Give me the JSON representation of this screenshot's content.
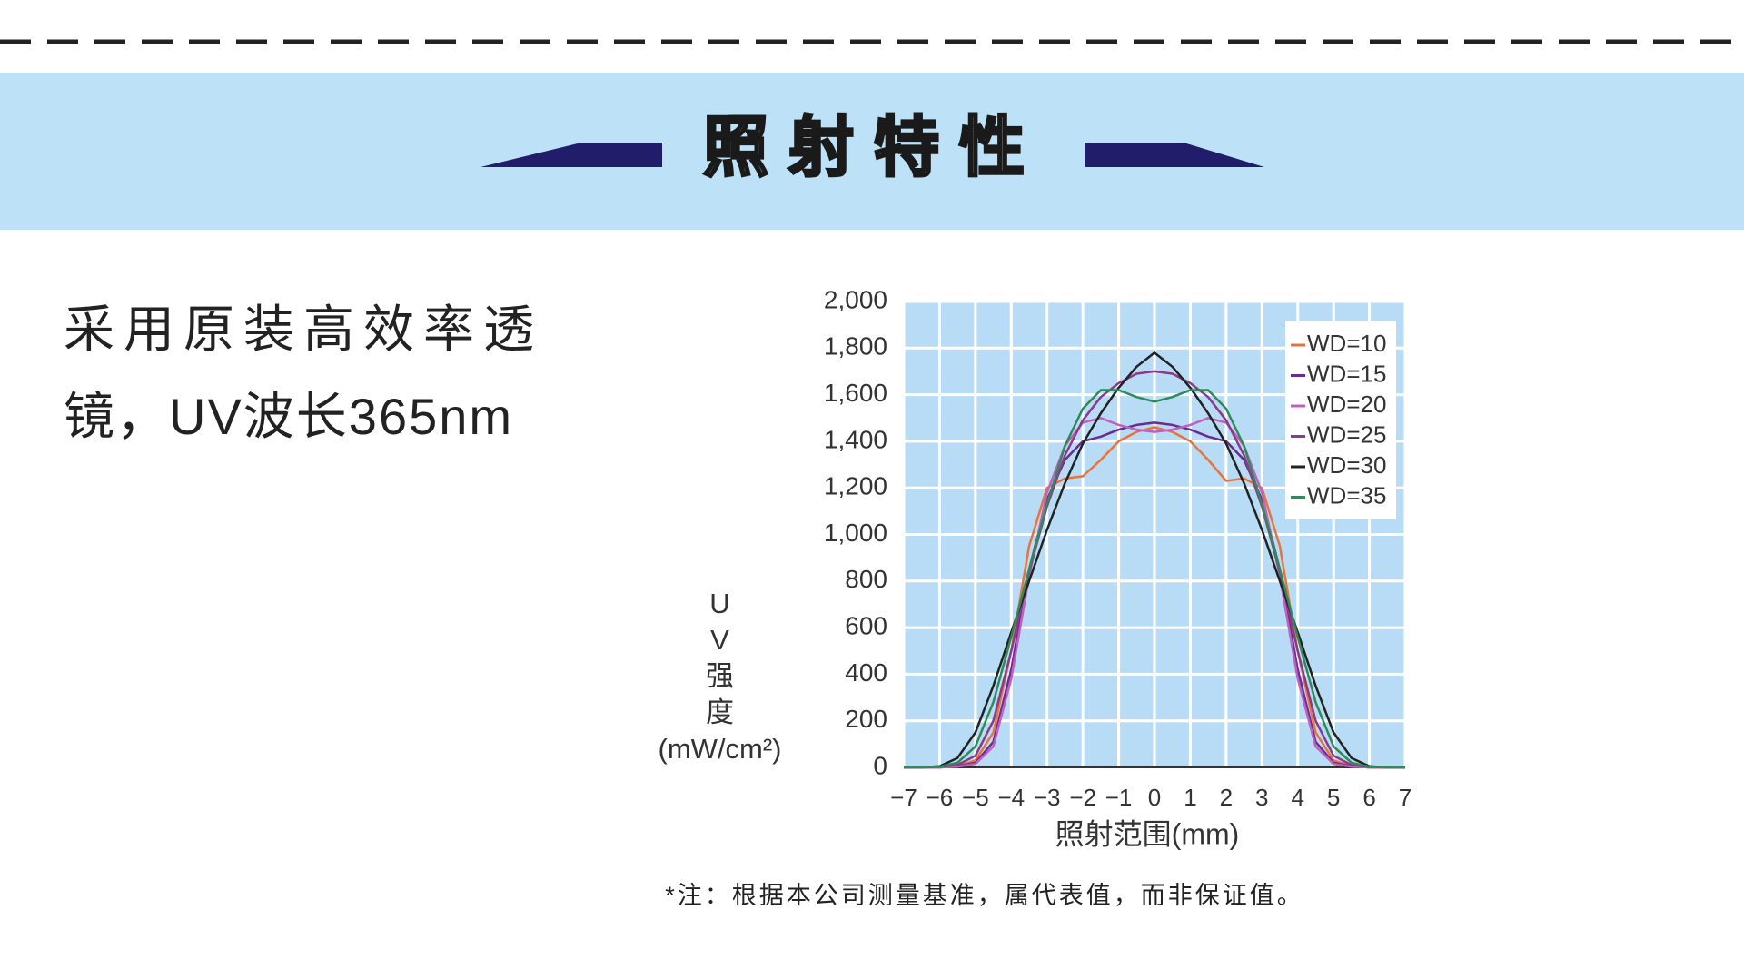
{
  "header": {
    "title": "照射特性"
  },
  "description": {
    "lines": [
      "采用原装高效率透",
      "镜，UV波长365nm"
    ]
  },
  "chart_data": {
    "type": "line",
    "xlabel": "照射范围(mm)",
    "ylabel": "UV强度",
    "yunit": "(mW/cm²)",
    "x": [
      -7,
      -6.5,
      -6,
      -5.5,
      -5,
      -4.5,
      -4,
      -3.5,
      -3,
      -2.5,
      -2,
      -1.5,
      -1,
      -0.5,
      0,
      0.5,
      1,
      1.5,
      2,
      2.5,
      3,
      3.5,
      4,
      4.5,
      5,
      5.5,
      6,
      6.5,
      7
    ],
    "series": [
      {
        "name": "WD=10",
        "color": "#e8743b",
        "values": [
          0,
          0,
          0,
          5,
          30,
          150,
          500,
          950,
          1200,
          1240,
          1250,
          1320,
          1400,
          1440,
          1460,
          1440,
          1400,
          1320,
          1230,
          1240,
          1200,
          950,
          500,
          150,
          30,
          5,
          0,
          0,
          0
        ]
      },
      {
        "name": "WD=15",
        "color": "#6a2c8e",
        "values": [
          0,
          0,
          0,
          5,
          20,
          110,
          420,
          850,
          1150,
          1320,
          1400,
          1420,
          1450,
          1470,
          1480,
          1470,
          1450,
          1420,
          1400,
          1320,
          1150,
          850,
          420,
          110,
          20,
          5,
          0,
          0,
          0
        ]
      },
      {
        "name": "WD=20",
        "color": "#c060c0",
        "values": [
          0,
          0,
          0,
          3,
          15,
          90,
          380,
          820,
          1180,
          1380,
          1480,
          1500,
          1470,
          1450,
          1440,
          1450,
          1470,
          1500,
          1480,
          1380,
          1180,
          820,
          380,
          90,
          15,
          3,
          0,
          0,
          0
        ]
      },
      {
        "name": "WD=25",
        "color": "#8b3a8b",
        "values": [
          0,
          0,
          2,
          10,
          50,
          200,
          500,
          840,
          1120,
          1340,
          1490,
          1590,
          1650,
          1690,
          1700,
          1690,
          1650,
          1590,
          1490,
          1340,
          1120,
          840,
          500,
          200,
          50,
          10,
          2,
          0,
          0
        ]
      },
      {
        "name": "WD=30",
        "color": "#222222",
        "values": [
          0,
          0,
          5,
          40,
          150,
          350,
          580,
          800,
          1020,
          1220,
          1390,
          1520,
          1630,
          1720,
          1780,
          1720,
          1630,
          1520,
          1390,
          1220,
          1020,
          800,
          580,
          350,
          150,
          40,
          5,
          0,
          0
        ]
      },
      {
        "name": "WD=35",
        "color": "#2e8b57",
        "values": [
          0,
          0,
          3,
          20,
          90,
          280,
          560,
          850,
          1130,
          1380,
          1540,
          1620,
          1620,
          1590,
          1570,
          1590,
          1620,
          1620,
          1540,
          1380,
          1130,
          850,
          560,
          280,
          90,
          20,
          3,
          0,
          0
        ]
      }
    ],
    "xlim": [
      -7,
      7
    ],
    "xticks": [
      {
        "value": -7,
        "label": "−7"
      },
      {
        "value": -6,
        "label": "−6"
      },
      {
        "value": -5,
        "label": "−5"
      },
      {
        "value": -4,
        "label": "−4"
      },
      {
        "value": -3,
        "label": "−3"
      },
      {
        "value": -2,
        "label": "−2"
      },
      {
        "value": -1,
        "label": "−1"
      },
      0,
      1,
      2,
      3,
      4,
      5,
      6,
      7
    ],
    "ylim": [
      0,
      2000
    ],
    "yticks": [
      0,
      200,
      400,
      600,
      800,
      {
        "value": 1000,
        "label": "1,000"
      },
      {
        "value": 1200,
        "label": "1,200"
      },
      {
        "value": 1400,
        "label": "1,400"
      },
      {
        "value": 1600,
        "label": "1,600"
      },
      {
        "value": 1800,
        "label": "1,800"
      },
      {
        "value": 2000,
        "label": "2,000"
      }
    ],
    "grid": true,
    "legend": "upper right",
    "plot_background": "#b8dcf5"
  },
  "note": "*注：根据本公司测量基准，属代表值，而非保证值。"
}
